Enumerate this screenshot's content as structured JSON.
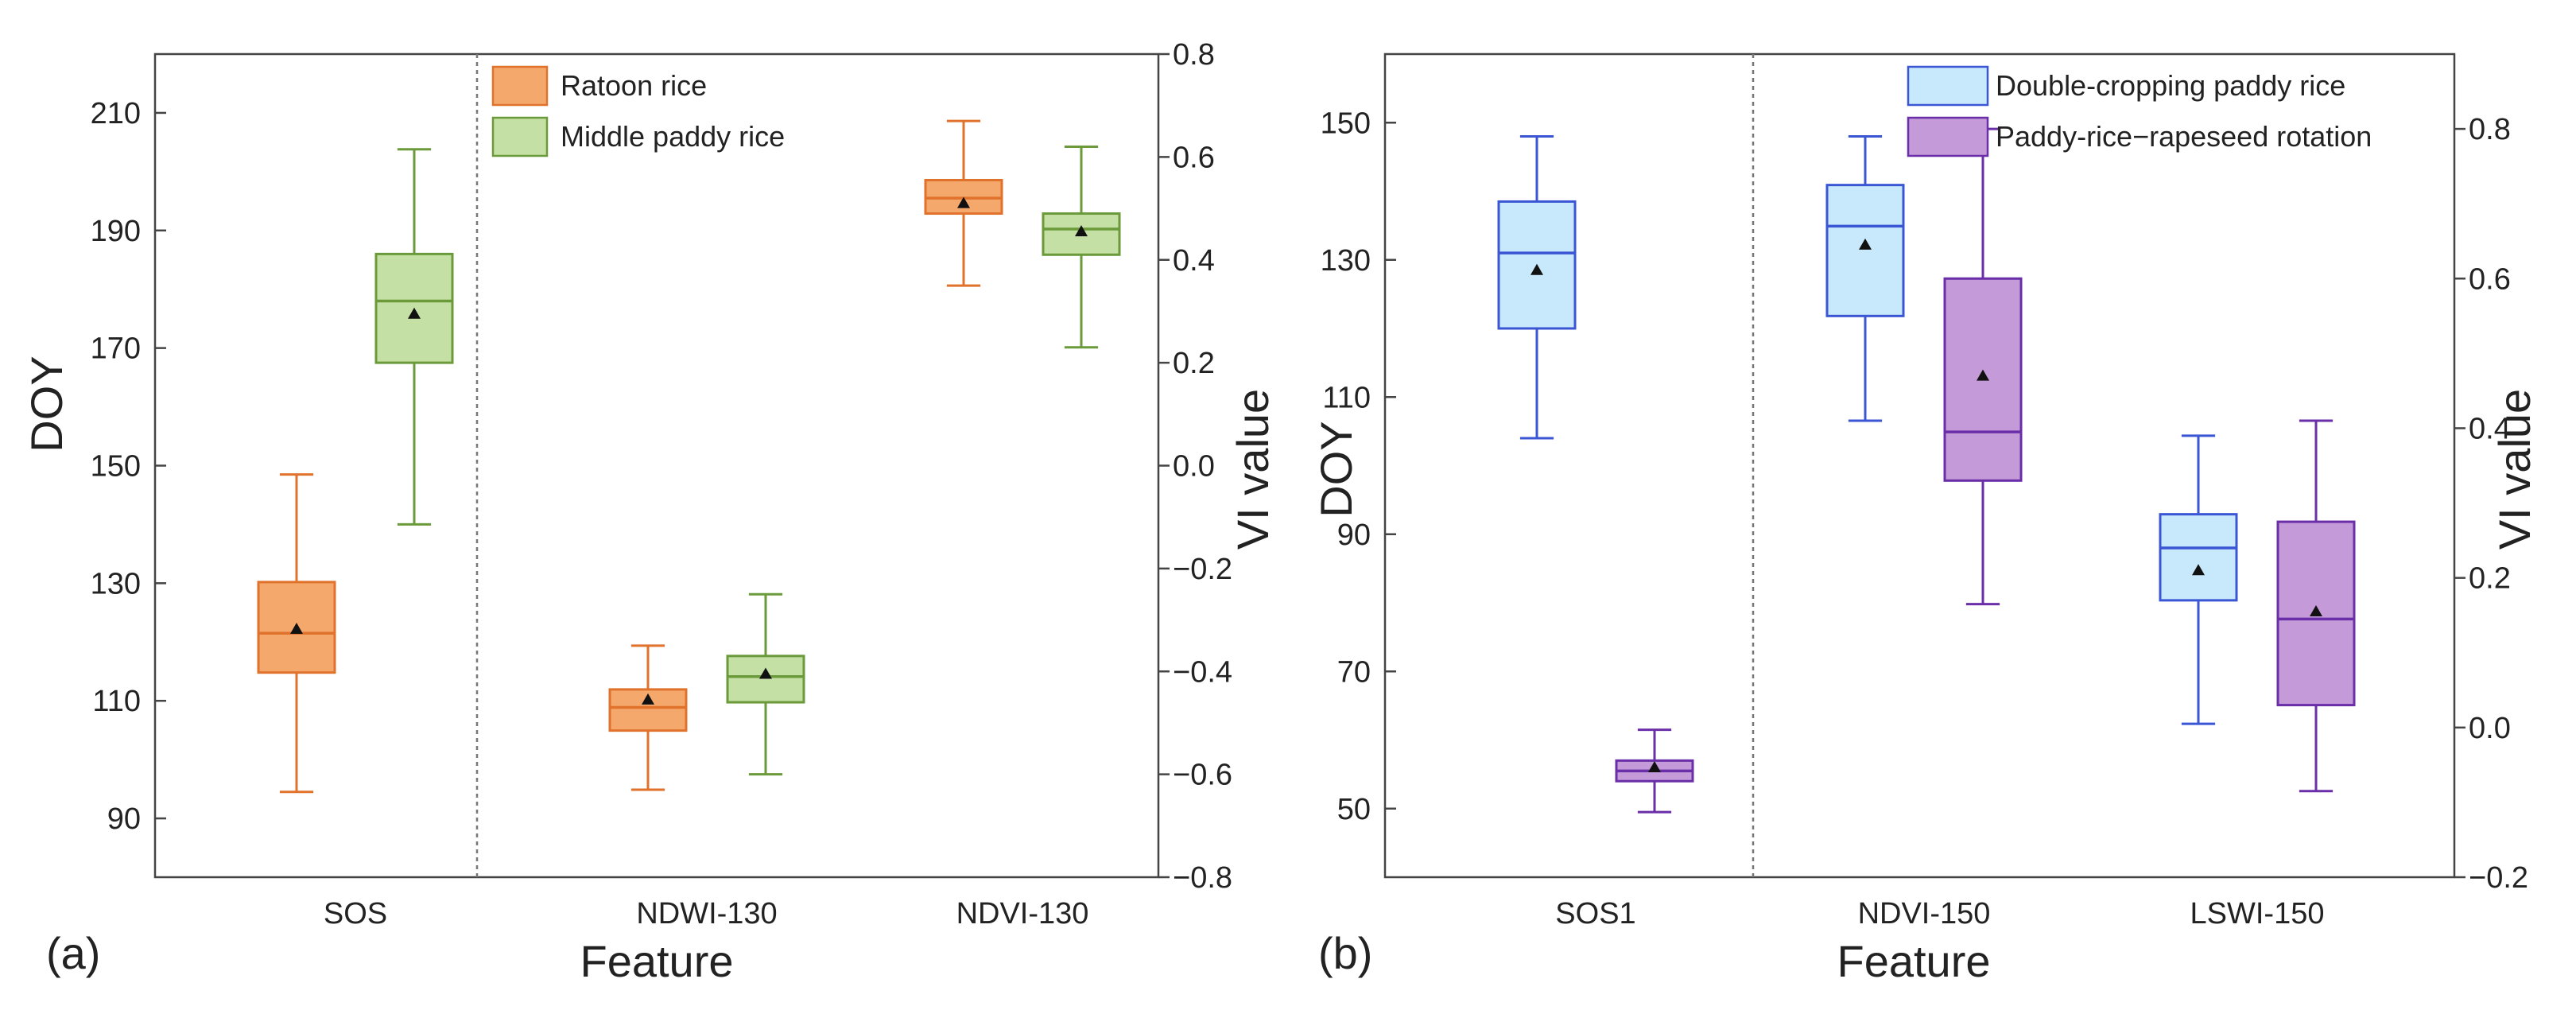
{
  "chart_data": [
    {
      "type": "box",
      "panel_label": "(a)",
      "xlabel": "Feature",
      "ylabel": "DOY",
      "y2label": "VI value",
      "ylim": [
        80,
        220
      ],
      "y2lim": [
        -0.8,
        0.8
      ],
      "yticks": [
        90,
        110,
        130,
        150,
        170,
        190,
        210
      ],
      "y2ticks": [
        -0.8,
        -0.6,
        -0.4,
        -0.2,
        0.0,
        0.2,
        0.4,
        0.6,
        0.8
      ],
      "categories": [
        "SOS",
        "NDWI-130",
        "NDVI-130"
      ],
      "category_axes": [
        "left",
        "right",
        "right"
      ],
      "separator_after_category": 0,
      "legend_position": "top-center",
      "series": [
        {
          "name": "Ratoon rice",
          "fill": "#f5a86c",
          "stroke": "#e0722c",
          "boxes": [
            {
              "min": 94.5,
              "q1": 114.8,
              "median": 121.5,
              "q3": 130.2,
              "max": 148.5,
              "mean": 122.2
            },
            {
              "min": -0.63,
              "q1": -0.515,
              "median": -0.47,
              "q3": -0.435,
              "max": -0.35,
              "mean": -0.455
            },
            {
              "min": 0.35,
              "q1": 0.49,
              "median": 0.52,
              "q3": 0.555,
              "max": 0.67,
              "mean": 0.51
            }
          ]
        },
        {
          "name": "Middle paddy rice",
          "fill": "#c5e0a5",
          "stroke": "#6a9a3a",
          "boxes": [
            {
              "min": 140.0,
              "q1": 167.5,
              "median": 178.0,
              "q3": 186.0,
              "max": 203.8,
              "mean": 175.8
            },
            {
              "min": -0.6,
              "q1": -0.46,
              "median": -0.41,
              "q3": -0.37,
              "max": -0.25,
              "mean": -0.405
            },
            {
              "min": 0.23,
              "q1": 0.41,
              "median": 0.46,
              "q3": 0.49,
              "max": 0.62,
              "mean": 0.455
            }
          ]
        }
      ]
    },
    {
      "type": "box",
      "panel_label": "(b)",
      "xlabel": "Feature",
      "ylabel": "DOY",
      "y2label": "VI value",
      "ylim": [
        40,
        160
      ],
      "y2lim": [
        -0.2,
        0.9
      ],
      "yticks": [
        50,
        70,
        90,
        110,
        130,
        150
      ],
      "y2ticks": [
        -0.2,
        0.0,
        0.2,
        0.4,
        0.6,
        0.8
      ],
      "categories": [
        "SOS1",
        "NDVI-150",
        "LSWI-150"
      ],
      "category_axes": [
        "left",
        "right",
        "right"
      ],
      "separator_after_category": 0,
      "legend_position": "top-right",
      "series": [
        {
          "name": "Double-cropping paddy rice",
          "fill": "#c8e9fb",
          "stroke": "#3a56d4",
          "boxes": [
            {
              "min": 104.0,
              "q1": 120.0,
              "median": 131.0,
              "q3": 138.5,
              "max": 148.0,
              "mean": 128.5
            },
            {
              "min": 0.41,
              "q1": 0.55,
              "median": 0.67,
              "q3": 0.725,
              "max": 0.79,
              "mean": 0.645
            },
            {
              "min": 0.005,
              "q1": 0.17,
              "median": 0.24,
              "q3": 0.285,
              "max": 0.39,
              "mean": 0.21
            }
          ]
        },
        {
          "name": "Paddy-rice−rapeseed rotation",
          "fill": "#c49ad8",
          "stroke": "#6a2fa8",
          "boxes": [
            {
              "min": 49.5,
              "q1": 54.0,
              "median": 55.5,
              "q3": 57.0,
              "max": 61.5,
              "mean": 56.0
            },
            {
              "min": 0.165,
              "q1": 0.33,
              "median": 0.395,
              "q3": 0.6,
              "max": 0.8,
              "mean": 0.47
            },
            {
              "min": -0.085,
              "q1": 0.03,
              "median": 0.145,
              "q3": 0.275,
              "max": 0.41,
              "mean": 0.155
            }
          ]
        }
      ]
    }
  ]
}
